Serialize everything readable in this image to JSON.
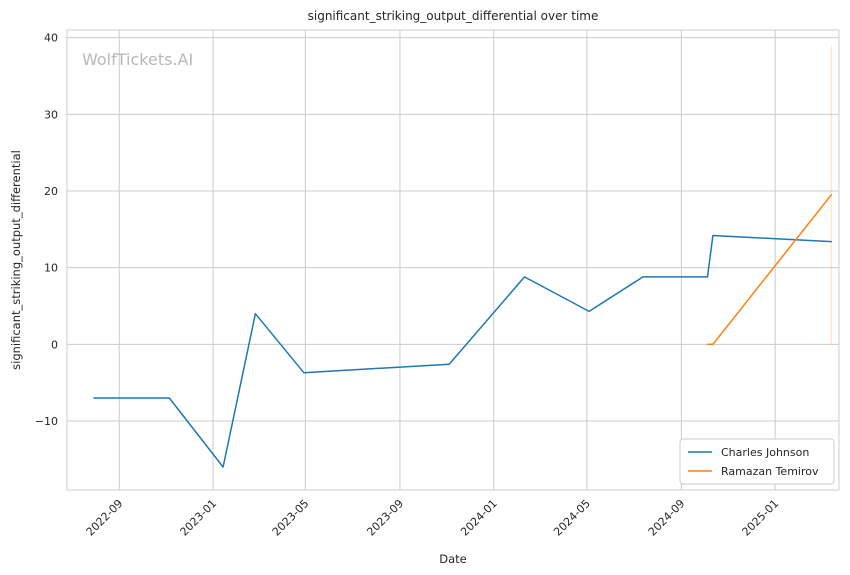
{
  "chart_data": {
    "type": "line",
    "title": "significant_striking_output_differential over time",
    "xlabel": "Date",
    "ylabel": "significant_striking_output_differential",
    "watermark": "WolfTickets.AI",
    "x_ticks": [
      "2022-09",
      "2023-01",
      "2023-05",
      "2023-09",
      "2024-01",
      "2024-05",
      "2024-09",
      "2025-01"
    ],
    "y_ticks": [
      -10,
      0,
      10,
      20,
      30,
      40
    ],
    "ylim": [
      -19,
      41
    ],
    "xlim": [
      "2022-06-25",
      "2025-03-25"
    ],
    "grid": true,
    "legend_position": "bottom-right",
    "series": [
      {
        "name": "Charles Johnson",
        "color": "#1f77b4",
        "points": [
          {
            "x": "2022-07-30",
            "y": -7.0
          },
          {
            "x": "2022-11-05",
            "y": -7.0
          },
          {
            "x": "2023-01-14",
            "y": -16.0
          },
          {
            "x": "2023-02-25",
            "y": 4.0
          },
          {
            "x": "2023-04-29",
            "y": -3.7
          },
          {
            "x": "2023-11-04",
            "y": -2.6
          },
          {
            "x": "2024-02-10",
            "y": 8.8
          },
          {
            "x": "2024-05-04",
            "y": 4.3
          },
          {
            "x": "2024-07-13",
            "y": 8.8
          },
          {
            "x": "2024-10-05",
            "y": 8.8
          },
          {
            "x": "2024-10-12",
            "y": 14.2
          },
          {
            "x": "2025-03-15",
            "y": 13.4
          }
        ]
      },
      {
        "name": "Ramazan Temirov",
        "color": "#ff7f0e",
        "points": [
          {
            "x": "2024-10-05",
            "y": 0.0
          },
          {
            "x": "2024-10-12",
            "y": 0.0
          },
          {
            "x": "2025-03-15",
            "y": 19.5
          }
        ]
      }
    ],
    "band": {
      "x": "2025-03-15",
      "y_from": 0,
      "y_to": 39,
      "color": "#ff7f0e"
    }
  }
}
